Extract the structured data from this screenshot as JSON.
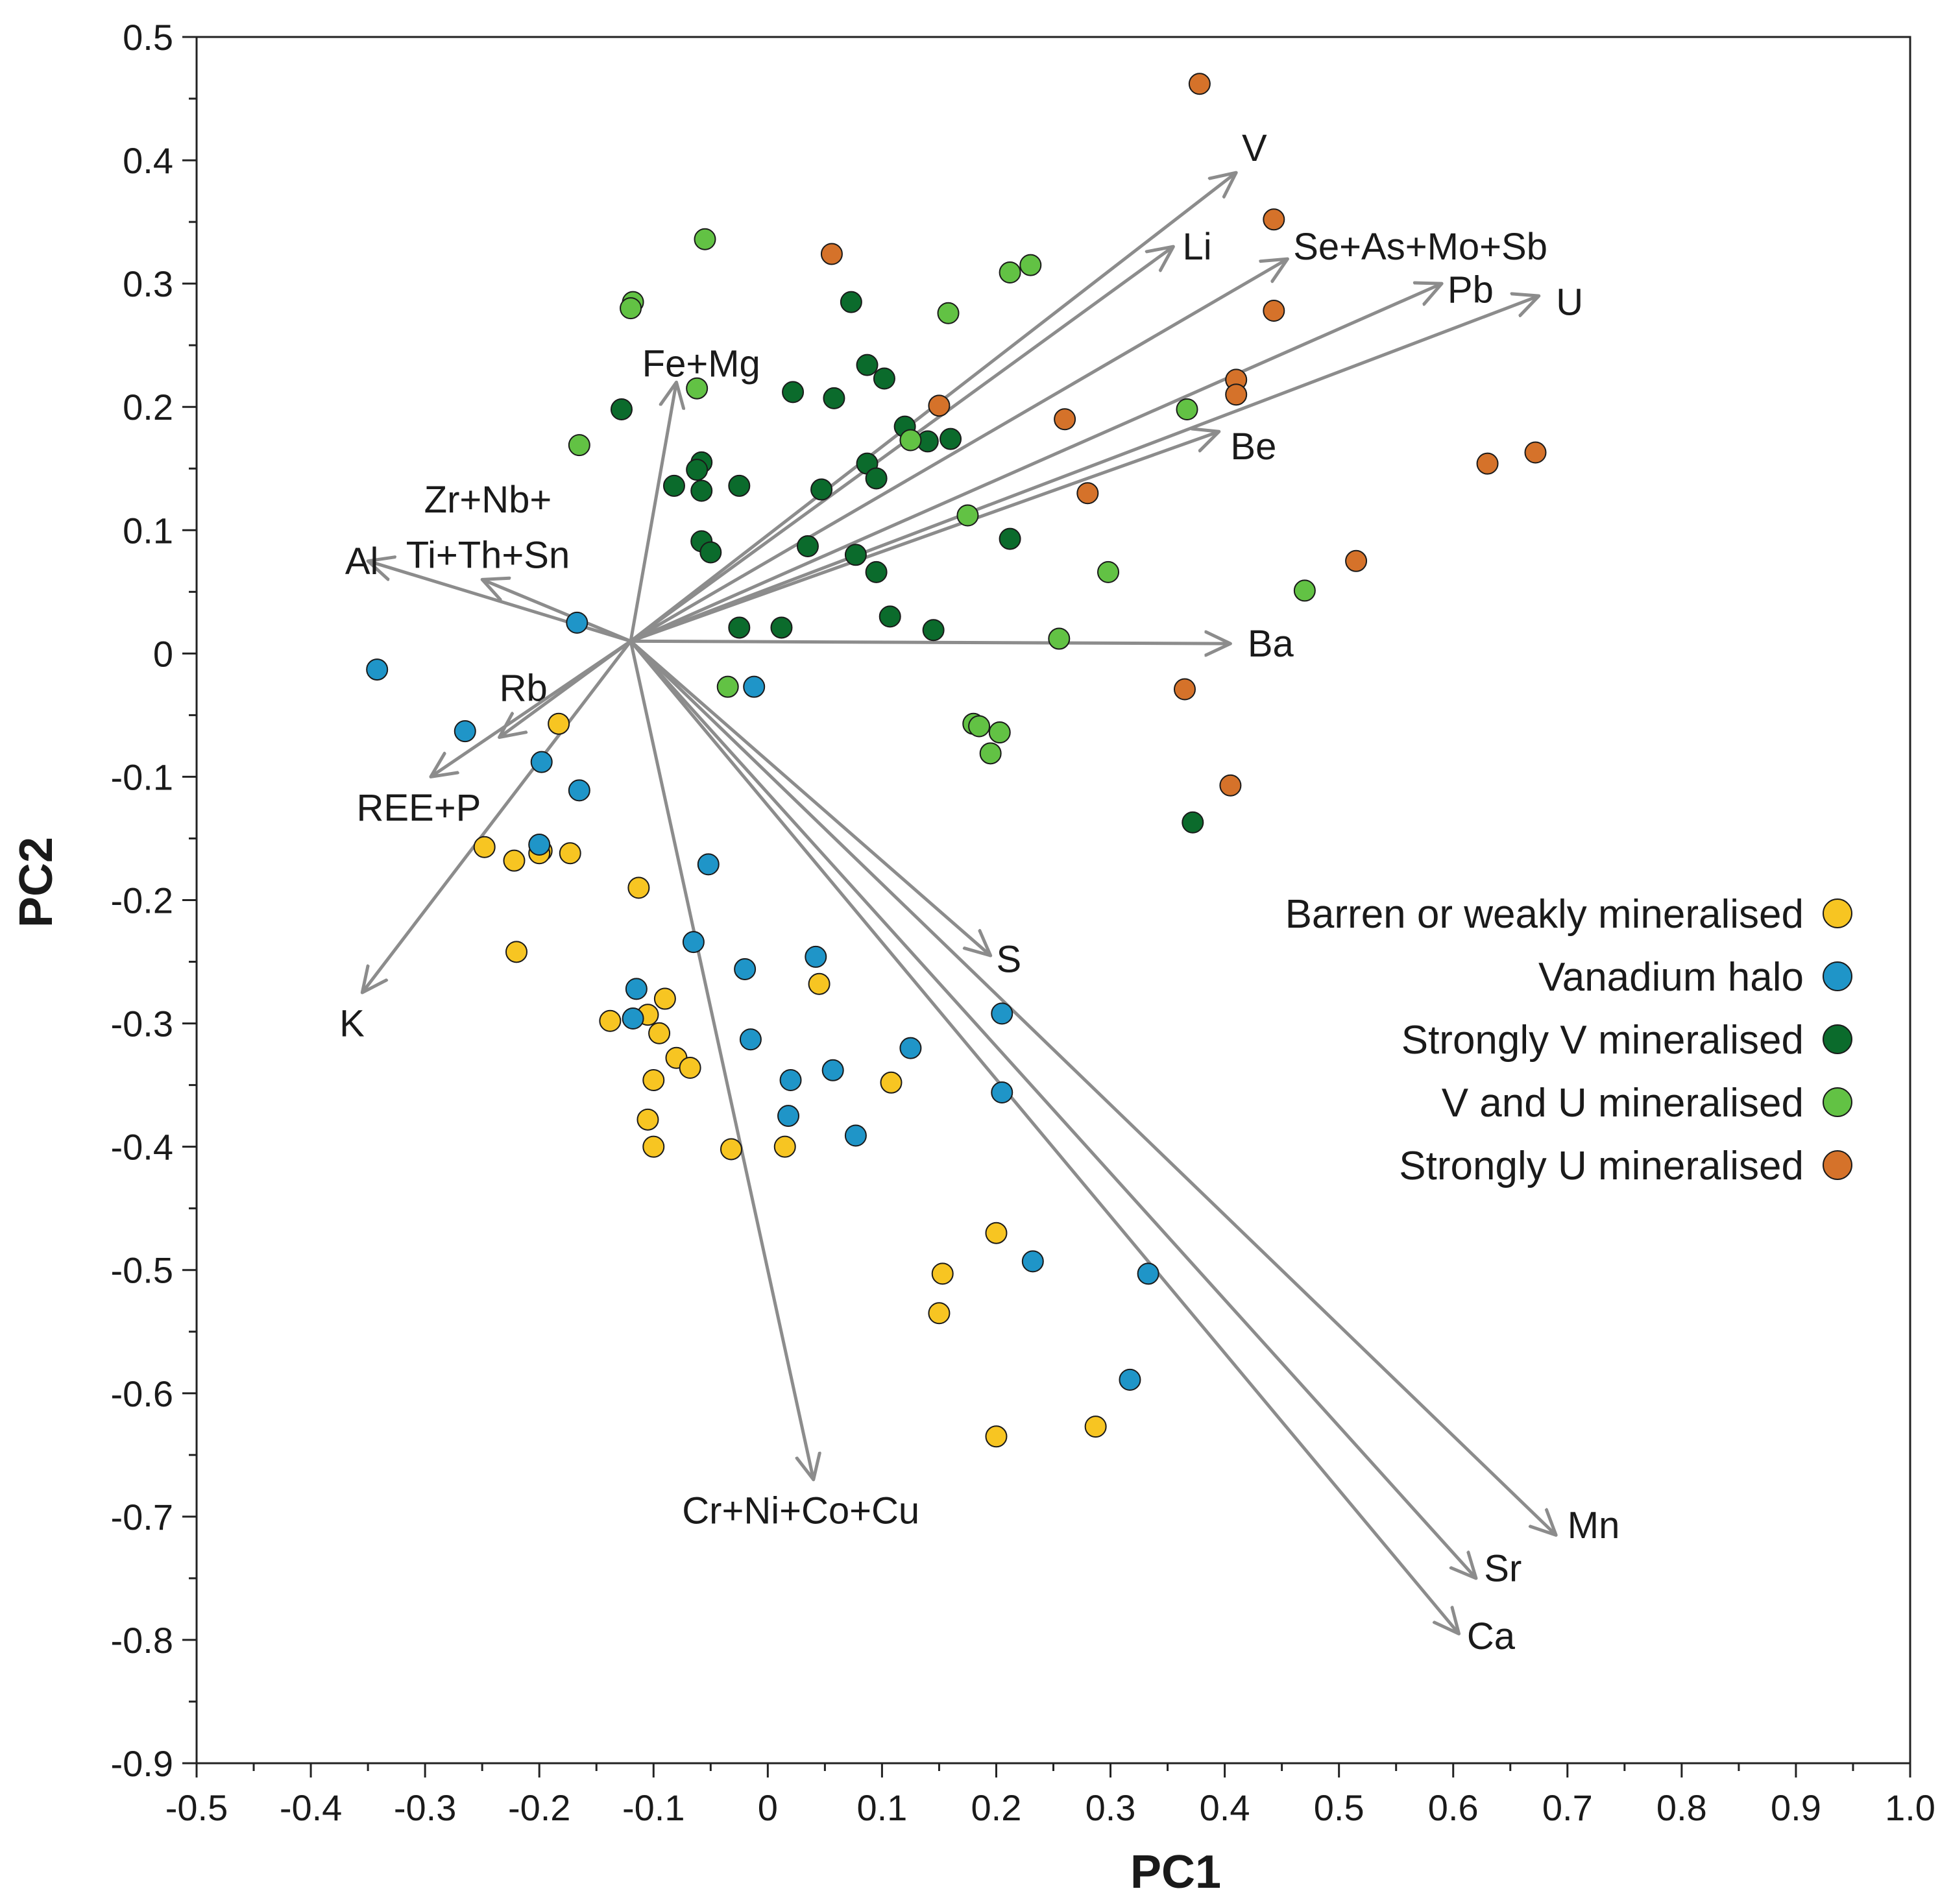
{
  "chart_data": {
    "type": "scatter",
    "xlabel": "PC1",
    "ylabel": "PC2",
    "xlim": [
      -0.5,
      1.0
    ],
    "ylim": [
      -0.9,
      0.5
    ],
    "x_ticks": [
      "-0.5",
      "-0.4",
      "-0.3",
      "-0.2",
      "-0.1",
      "0",
      "0.1",
      "0.2",
      "0.3",
      "0.4",
      "0.5",
      "0.6",
      "0.7",
      "0.8",
      "0.9",
      "1.0"
    ],
    "y_ticks": [
      "0.5",
      "0.4",
      "0.3",
      "0.2",
      "0.1",
      "0",
      "-0.1",
      "-0.2",
      "-0.3",
      "-0.4",
      "-0.5",
      "-0.6",
      "-0.7",
      "-0.8",
      "-0.9"
    ],
    "grid": false,
    "legend_position": "right",
    "loading_origin": [
      -0.12,
      0.01
    ],
    "loadings": [
      {
        "label": "V",
        "x": 0.41,
        "y": 0.39,
        "label_x": 0.415,
        "label_y": 0.41
      },
      {
        "label": "Li",
        "x": 0.355,
        "y": 0.33,
        "label_x": 0.363,
        "label_y": 0.33
      },
      {
        "label": "Se+As+Mo+Sb",
        "x": 0.455,
        "y": 0.32,
        "label_x": 0.46,
        "label_y": 0.33
      },
      {
        "label": "Pb",
        "x": 0.59,
        "y": 0.3,
        "label_x": 0.595,
        "label_y": 0.295
      },
      {
        "label": "U",
        "x": 0.675,
        "y": 0.29,
        "label_x": 0.69,
        "label_y": 0.285
      },
      {
        "label": "Fe+Mg",
        "x": -0.08,
        "y": 0.22,
        "label_x": -0.11,
        "label_y": 0.235
      },
      {
        "label": "Be",
        "x": 0.395,
        "y": 0.18,
        "label_x": 0.405,
        "label_y": 0.168
      },
      {
        "label": "Al",
        "x": -0.35,
        "y": 0.075,
        "label_x": -0.37,
        "label_y": 0.075
      },
      {
        "label": "Ba",
        "x": 0.405,
        "y": 0.008,
        "label_x": 0.42,
        "label_y": 0.008
      },
      {
        "label": "Rb",
        "x": -0.235,
        "y": -0.068,
        "label_x": -0.235,
        "label_y": -0.028
      },
      {
        "label": "REE+P",
        "x": -0.295,
        "y": -0.1,
        "label_x": -0.36,
        "label_y": -0.125
      },
      {
        "label": "K",
        "x": -0.355,
        "y": -0.275,
        "label_x": -0.375,
        "label_y": -0.3
      },
      {
        "label": "S",
        "x": 0.195,
        "y": -0.245,
        "label_x": 0.2,
        "label_y": -0.248
      },
      {
        "label": "Cr+Ni+Co+Cu",
        "x": 0.04,
        "y": -0.67,
        "label_x": -0.075,
        "label_y": -0.695
      },
      {
        "label": "Mn",
        "x": 0.69,
        "y": -0.715,
        "label_x": 0.7,
        "label_y": -0.707
      },
      {
        "label": "Sr",
        "x": 0.62,
        "y": -0.75,
        "label_x": 0.627,
        "label_y": -0.742
      },
      {
        "label": "Ca",
        "x": 0.605,
        "y": -0.795,
        "label_x": 0.612,
        "label_y": -0.797
      }
    ],
    "multiline_label": {
      "lines": [
        "Zr+Nb+",
        "Ti+Th+Sn"
      ],
      "x": -0.25,
      "y": 0.06,
      "line1_x": -0.245,
      "line1_y": 0.125,
      "line2_x": -0.245,
      "line2_y": 0.08
    },
    "series": [
      {
        "name": "Barren or weakly mineralised",
        "color": "#f7c522",
        "points": [
          [
            -0.183,
            -0.057
          ],
          [
            -0.248,
            -0.157
          ],
          [
            -0.222,
            -0.168
          ],
          [
            -0.198,
            -0.16
          ],
          [
            -0.2,
            -0.162
          ],
          [
            -0.173,
            -0.162
          ],
          [
            -0.22,
            -0.242
          ],
          [
            -0.113,
            -0.19
          ],
          [
            -0.138,
            -0.298
          ],
          [
            -0.105,
            -0.293
          ],
          [
            -0.09,
            -0.28
          ],
          [
            -0.095,
            -0.308
          ],
          [
            -0.08,
            -0.328
          ],
          [
            -0.068,
            -0.336
          ],
          [
            -0.1,
            -0.346
          ],
          [
            -0.105,
            -0.378
          ],
          [
            -0.1,
            -0.4
          ],
          [
            -0.032,
            -0.402
          ],
          [
            0.015,
            -0.4
          ],
          [
            0.045,
            -0.268
          ],
          [
            0.108,
            -0.348
          ],
          [
            0.2,
            -0.47
          ],
          [
            0.153,
            -0.503
          ],
          [
            0.15,
            -0.535
          ],
          [
            0.287,
            -0.627
          ],
          [
            0.2,
            -0.635
          ]
        ]
      },
      {
        "name": "Vanadium halo",
        "color": "#1f95c8",
        "points": [
          [
            -0.342,
            -0.013
          ],
          [
            -0.265,
            -0.063
          ],
          [
            -0.167,
            0.025
          ],
          [
            -0.198,
            -0.088
          ],
          [
            -0.165,
            -0.111
          ],
          [
            -0.2,
            -0.155
          ],
          [
            -0.012,
            -0.027
          ],
          [
            -0.052,
            -0.171
          ],
          [
            -0.065,
            -0.234
          ],
          [
            -0.02,
            -0.256
          ],
          [
            0.042,
            -0.246
          ],
          [
            -0.115,
            -0.272
          ],
          [
            -0.118,
            -0.296
          ],
          [
            -0.015,
            -0.313
          ],
          [
            0.02,
            -0.346
          ],
          [
            0.057,
            -0.338
          ],
          [
            0.018,
            -0.375
          ],
          [
            0.077,
            -0.391
          ],
          [
            0.125,
            -0.32
          ],
          [
            0.205,
            -0.292
          ],
          [
            0.205,
            -0.356
          ],
          [
            0.232,
            -0.493
          ],
          [
            0.333,
            -0.503
          ],
          [
            0.317,
            -0.589
          ]
        ]
      },
      {
        "name": "Strongly V mineralised",
        "color": "#0b6b2c",
        "points": [
          [
            -0.128,
            0.198
          ],
          [
            0.073,
            0.285
          ],
          [
            0.087,
            0.234
          ],
          [
            0.102,
            0.223
          ],
          [
            0.022,
            0.212
          ],
          [
            0.058,
            0.207
          ],
          [
            0.12,
            0.184
          ],
          [
            0.14,
            0.172
          ],
          [
            0.16,
            0.174
          ],
          [
            0.087,
            0.154
          ],
          [
            0.095,
            0.142
          ],
          [
            0.047,
            0.133
          ],
          [
            -0.058,
            0.155
          ],
          [
            -0.062,
            0.149
          ],
          [
            -0.082,
            0.136
          ],
          [
            -0.058,
            0.132
          ],
          [
            -0.025,
            0.136
          ],
          [
            -0.058,
            0.091
          ],
          [
            -0.05,
            0.082
          ],
          [
            0.035,
            0.087
          ],
          [
            0.077,
            0.08
          ],
          [
            0.095,
            0.066
          ],
          [
            0.212,
            0.093
          ],
          [
            -0.025,
            0.021
          ],
          [
            0.012,
            0.021
          ],
          [
            0.107,
            0.03
          ],
          [
            0.145,
            0.019
          ],
          [
            0.372,
            -0.137
          ]
        ]
      },
      {
        "name": "V and U mineralised",
        "color": "#62c244",
        "points": [
          [
            -0.055,
            0.336
          ],
          [
            -0.118,
            0.285
          ],
          [
            -0.12,
            0.28
          ],
          [
            0.158,
            0.276
          ],
          [
            0.212,
            0.309
          ],
          [
            0.23,
            0.315
          ],
          [
            -0.165,
            0.169
          ],
          [
            -0.062,
            0.215
          ],
          [
            0.125,
            0.173
          ],
          [
            0.175,
            0.112
          ],
          [
            0.367,
            0.198
          ],
          [
            0.298,
            0.066
          ],
          [
            0.47,
            0.051
          ],
          [
            0.255,
            0.012
          ],
          [
            -0.035,
            -0.027
          ],
          [
            0.18,
            -0.057
          ],
          [
            0.185,
            -0.059
          ],
          [
            0.203,
            -0.064
          ],
          [
            0.195,
            -0.081
          ]
        ]
      },
      {
        "name": "Strongly U mineralised",
        "color": "#d5722a",
        "points": [
          [
            0.378,
            0.462
          ],
          [
            0.443,
            0.352
          ],
          [
            0.056,
            0.324
          ],
          [
            0.443,
            0.278
          ],
          [
            0.41,
            0.222
          ],
          [
            0.41,
            0.21
          ],
          [
            0.15,
            0.201
          ],
          [
            0.26,
            0.19
          ],
          [
            0.28,
            0.13
          ],
          [
            0.63,
            0.154
          ],
          [
            0.672,
            0.163
          ],
          [
            0.515,
            0.075
          ],
          [
            0.365,
            -0.029
          ],
          [
            0.405,
            -0.107
          ]
        ]
      }
    ]
  }
}
